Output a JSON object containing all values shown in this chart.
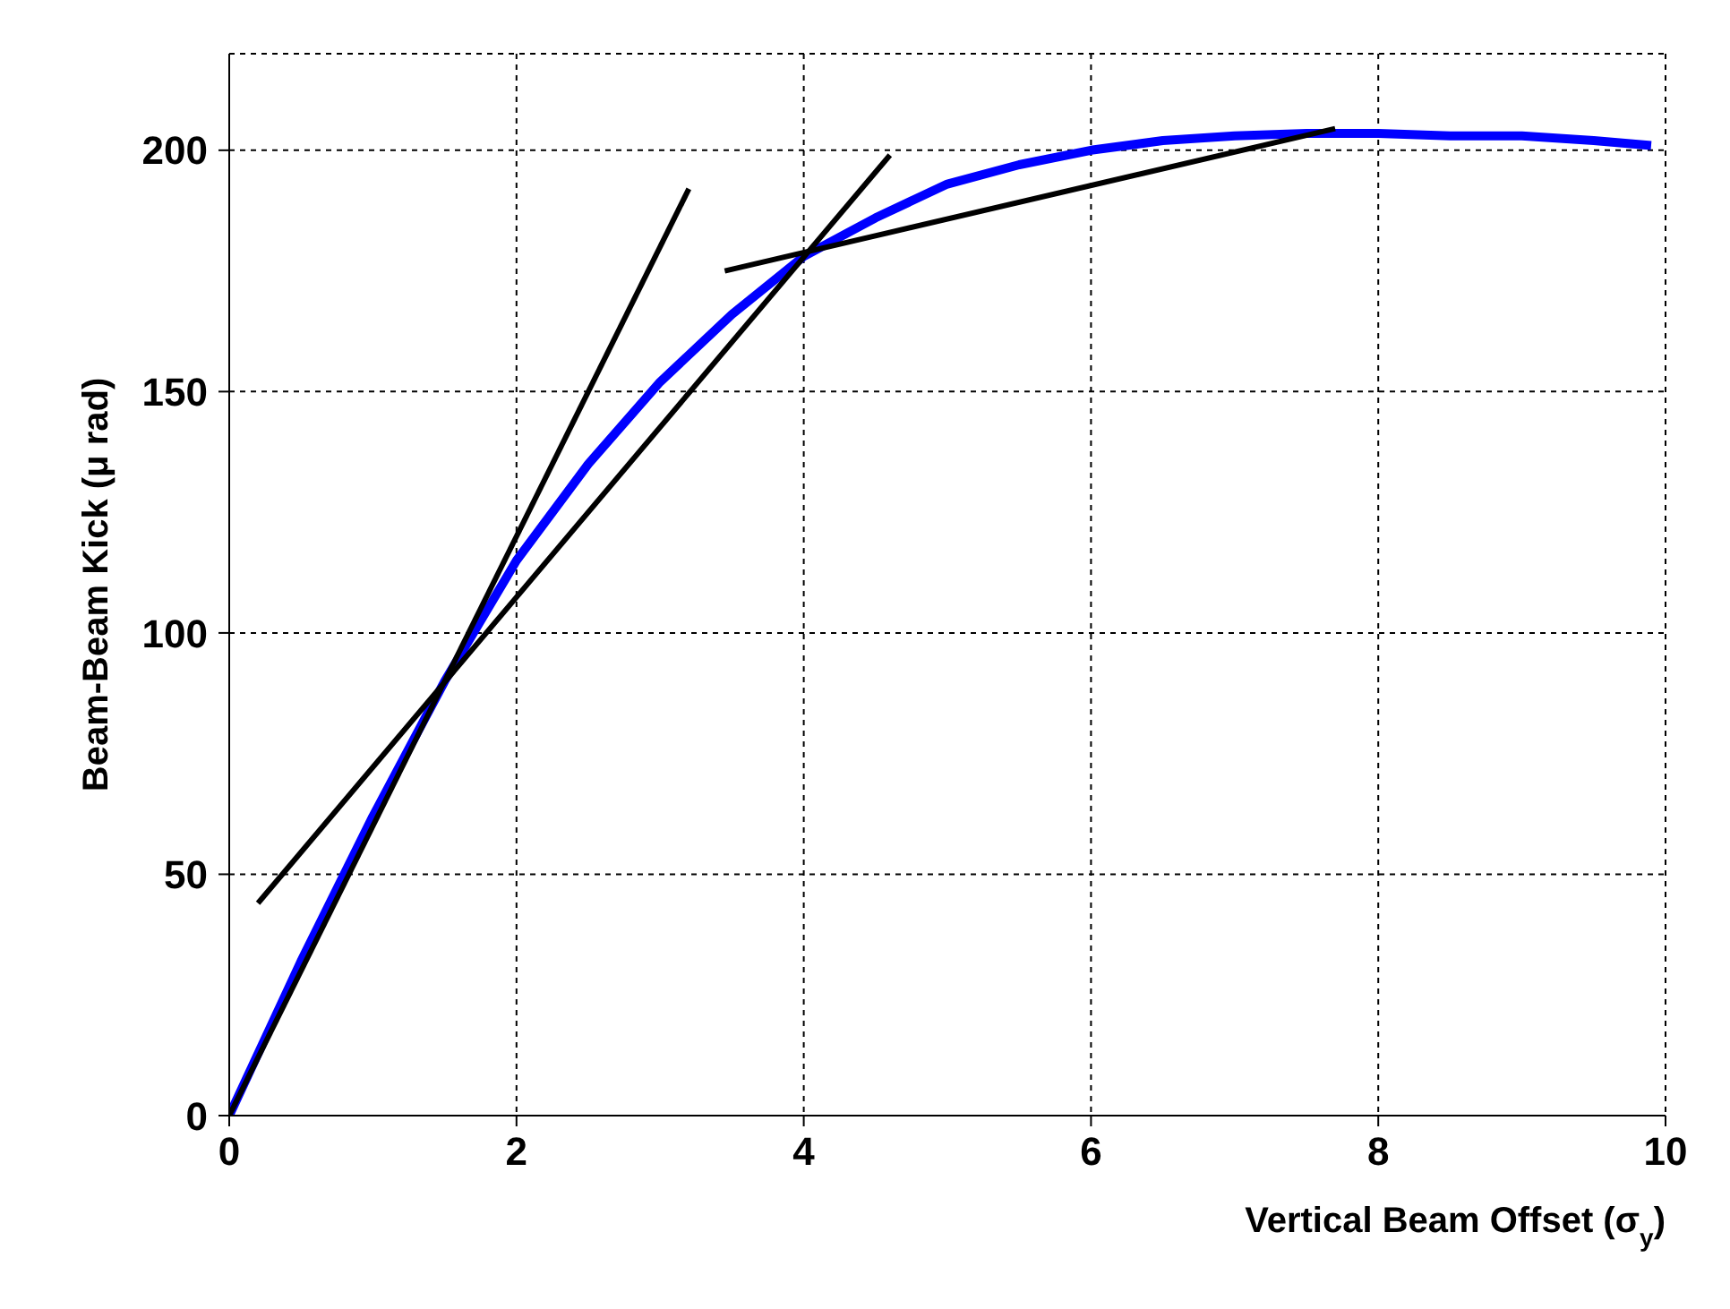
{
  "chart_data": {
    "type": "line",
    "xlabel": "Vertical Beam Offset (σ$_{y}$)",
    "ylabel": "Beam-Beam Kick (μ rad)",
    "xlim": [
      0,
      10
    ],
    "xticks": [
      0,
      2,
      4,
      6,
      8,
      10
    ],
    "ylim": [
      0,
      220
    ],
    "yticks": [
      0,
      50,
      100,
      150,
      200
    ],
    "grid": true,
    "marker": "none",
    "series": [
      {
        "color": "#0000ff",
        "x": [
          0,
          0.5,
          1,
          1.5,
          2,
          2.5,
          3,
          3.5,
          4,
          4.5,
          5,
          5.5,
          6,
          6.5,
          7,
          7.5,
          8,
          8.5,
          9,
          9.5,
          9.9
        ],
        "values": [
          0,
          32,
          62,
          90,
          115,
          135,
          152,
          166,
          178,
          186,
          193,
          197,
          200,
          202,
          203,
          203.5,
          203.5,
          203,
          203,
          202,
          201
        ]
      },
      {
        "color": "#000000",
        "x": [
          0,
          3.2
        ],
        "values": [
          0,
          192
        ]
      },
      {
        "color": "#000000",
        "x": [
          0.2,
          4.6
        ],
        "values": [
          44,
          199
        ]
      },
      {
        "color": "#000000",
        "x": [
          3.45,
          7.7
        ],
        "values": [
          175,
          204.5
        ]
      }
    ]
  }
}
